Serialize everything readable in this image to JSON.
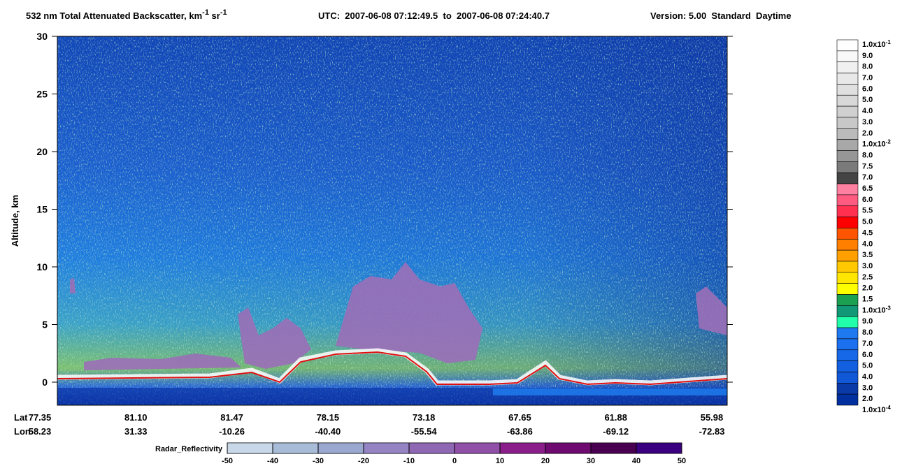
{
  "chart_data": {
    "type": "curtain",
    "title": [
      "532 nm Total Attenuated Backscatter, km",
      "-1",
      " sr",
      "-1"
    ],
    "time_range": "UTC:  2007-06-08 07:12:49.5  to  2007-06-08 07:24:40.7",
    "version": "Version: 5.00  Standard  Daytime",
    "ylabel": "Altitude, km",
    "ylim": [
      -2,
      30
    ],
    "yticks": [
      0,
      5,
      10,
      15,
      20,
      25,
      30
    ],
    "x_row_labels": [
      "Lat",
      "Lon"
    ],
    "lat": [
      "77.35",
      "81.10",
      "81.47",
      "78.15",
      "73.18",
      "67.65",
      "61.88",
      "55.98"
    ],
    "lon": [
      "58.23",
      "31.33",
      "-10.26",
      "-40.40",
      "-55.54",
      "-63.86",
      "-69.12",
      "-72.83"
    ],
    "colorbar": {
      "labels": [
        [
          "1.0x10",
          "-1"
        ],
        "9.0",
        "8.0",
        "7.0",
        "6.0",
        "5.0",
        "4.0",
        "3.0",
        "2.0",
        [
          "1.0x10",
          "-2"
        ],
        "8.0",
        "7.5",
        "7.0",
        "6.5",
        "6.0",
        "5.5",
        "5.0",
        "4.5",
        "4.0",
        "3.5",
        "3.0",
        "2.5",
        "2.0",
        "1.5",
        [
          "1.0x10",
          "-3"
        ],
        "9.0",
        "8.0",
        "7.0",
        "6.0",
        "5.0",
        "4.0",
        "3.0",
        "2.0",
        [
          "1.0x10",
          "-4"
        ]
      ],
      "colors": [
        "#ffffff",
        "#f8f8f8",
        "#f0f0f0",
        "#e8e8e8",
        "#e0e0e0",
        "#d8d8d8",
        "#d0d0d0",
        "#c8c8c8",
        "#bbbbbb",
        "#a8a8a8",
        "#969696",
        "#7a7a7a",
        "#444444",
        "#ff7fa0",
        "#ff5a80",
        "#ff3050",
        "#ff0000",
        "#ff5500",
        "#ff7f00",
        "#ffa000",
        "#ffc800",
        "#ffe600",
        "#ffff00",
        "#1aa050",
        "#119977",
        "#22ffaa",
        "#1e78f0",
        "#1a70ee",
        "#1668e8",
        "#1260e0",
        "#1058d8",
        "#0a3aa8",
        "#0030a0"
      ]
    },
    "radar_colorbar": {
      "label": "Radar_Reflectivity",
      "xlim": [
        -50,
        50
      ],
      "ticks": [
        -50,
        -40,
        -30,
        -20,
        -10,
        0,
        10,
        20,
        30,
        40,
        50
      ],
      "colors": [
        "#c8d8e8",
        "#a8bcd8",
        "#9aa8d0",
        "#9484c4",
        "#8f68b4",
        "#9050a8",
        "#8a1e8a",
        "#6e0a70",
        "#4a0050",
        "#3a0080"
      ]
    }
  }
}
